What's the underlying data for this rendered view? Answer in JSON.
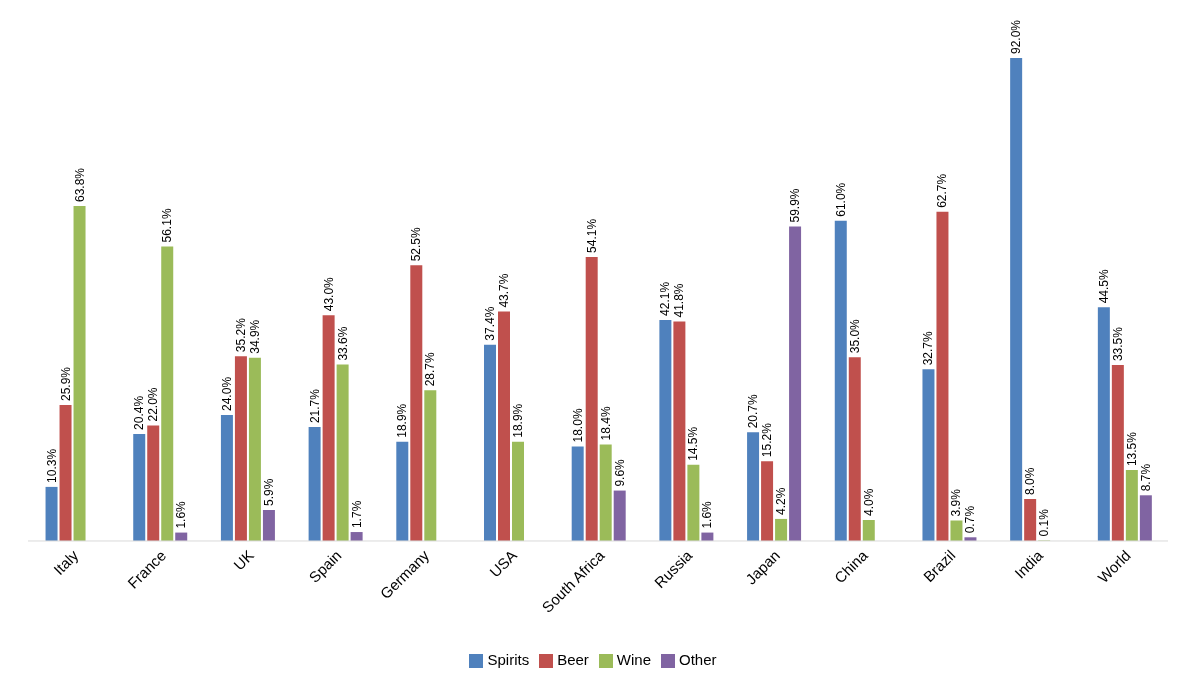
{
  "chart_data": {
    "type": "bar",
    "categories": [
      "Italy",
      "France",
      "UK",
      "Spain",
      "Germany",
      "USA",
      "South Africa",
      "Russia",
      "Japan",
      "China",
      "Brazil",
      "India",
      "World"
    ],
    "series": [
      {
        "name": "Spirits",
        "color": "#4f81bd",
        "values": [
          10.3,
          20.4,
          24.0,
          21.7,
          18.9,
          37.4,
          18.0,
          42.1,
          20.7,
          61.0,
          32.7,
          92.0,
          44.5
        ],
        "value_labels": [
          "10.3%",
          "20.4%",
          "24.0%",
          "21.7%",
          "18.9%",
          "37.4%",
          "18.0%",
          "42.1%",
          "20.7%",
          "61.0%",
          "32.7%",
          "92.0%",
          "44.5%"
        ]
      },
      {
        "name": "Beer",
        "color": "#c0504d",
        "values": [
          25.9,
          22.0,
          35.2,
          43.0,
          52.5,
          43.7,
          54.1,
          41.8,
          15.2,
          35.0,
          62.7,
          8.0,
          33.5
        ],
        "value_labels": [
          "25.9%",
          "22.0%",
          "35.2%",
          "43.0%",
          "52.5%",
          "43.7%",
          "54.1%",
          "41.8%",
          "15.2%",
          "35.0%",
          "62.7%",
          "8.0%",
          "33.5%"
        ]
      },
      {
        "name": "Wine",
        "color": "#9bbb59",
        "values": [
          63.8,
          56.1,
          34.9,
          33.6,
          28.7,
          18.9,
          18.4,
          14.5,
          4.2,
          4.0,
          3.9,
          0.1,
          13.5
        ],
        "value_labels": [
          "63.8%",
          "56.1%",
          "34.9%",
          "33.6%",
          "28.7%",
          "18.9%",
          "18.4%",
          "14.5%",
          "4.2%",
          "4.0%",
          "3.9%",
          "0.1%",
          "13.5%"
        ]
      },
      {
        "name": "Other",
        "color": "#8064a2",
        "values": [
          null,
          1.6,
          5.9,
          1.7,
          null,
          null,
          9.6,
          1.6,
          59.9,
          null,
          0.7,
          null,
          8.7
        ],
        "value_labels": [
          null,
          "1.6%",
          "5.9%",
          "1.7%",
          null,
          null,
          "9.6%",
          "1.6%",
          "59.9%",
          null,
          "0.7%",
          null,
          "8.7%"
        ]
      }
    ],
    "grid": false,
    "legend": "bottom"
  }
}
